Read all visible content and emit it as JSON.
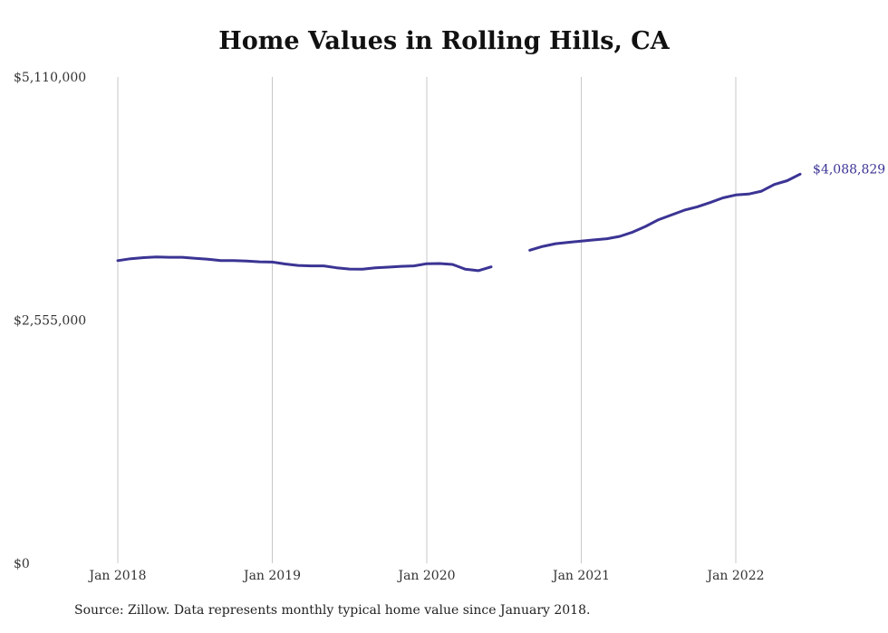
{
  "chart_data": {
    "type": "line",
    "title": "Home Values in Rolling Hills, CA",
    "xlabel": "",
    "ylabel": "",
    "ylim": [
      0,
      5110000
    ],
    "y_ticks": [
      {
        "value": 0,
        "label": "$0"
      },
      {
        "value": 2555000,
        "label": "$2,555,000"
      },
      {
        "value": 5110000,
        "label": "$5,110,000"
      }
    ],
    "x_ticks": [
      {
        "value": 0,
        "label": "Jan 2018"
      },
      {
        "value": 12,
        "label": "Jan 2019"
      },
      {
        "value": 24,
        "label": "Jan 2020"
      },
      {
        "value": 36,
        "label": "Jan 2021"
      },
      {
        "value": 48,
        "label": "Jan 2022"
      }
    ],
    "x_grid": true,
    "y_grid": false,
    "line_color": "#3b3494",
    "end_label": "$4,088,829",
    "values": [
      3180000,
      3200000,
      3212000,
      3218000,
      3215000,
      3215000,
      3205000,
      3195000,
      3180000,
      3180000,
      3175000,
      3168000,
      3165000,
      3145000,
      3130000,
      3125000,
      3125000,
      3105000,
      3092000,
      3090000,
      3105000,
      3112000,
      3120000,
      3125000,
      3148000,
      3150000,
      3140000,
      3090000,
      3075000,
      3115000,
      null,
      null,
      3290000,
      3330000,
      3358000,
      3372000,
      3385000,
      3398000,
      3410000,
      3435000,
      3480000,
      3540000,
      3610000,
      3660000,
      3710000,
      3745000,
      3790000,
      3840000,
      3870000,
      3880000,
      3910000,
      3980000,
      4020000,
      4088829
    ]
  },
  "source_note": "Source: Zillow. Data represents monthly typical home value since January 2018."
}
